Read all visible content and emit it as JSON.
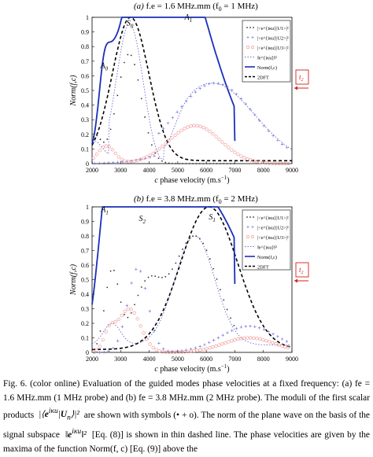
{
  "figure": {
    "colors": {
      "blue": "#1a2fb8",
      "black": "#000000",
      "red": "#d51f1f",
      "dotted": "#6b6bd6",
      "light_red": "#ef8f8f",
      "dark_dots": "#333333"
    },
    "panels": [
      {
        "label": "(a)",
        "title_rest": "f.e = 1.6 MHz.mm  (f",
        "title_sub": "0",
        "title_end": " = 1 MHz)",
        "xlabel": "c phase velocity (m.s",
        "xlabel_sup": "−1",
        "xlabel_end": ")",
        "ylabel": "Norm(f,c)",
        "xticks": [
          "2000",
          "3000",
          "4000",
          "5000",
          "6000",
          "7000",
          "8000",
          "9000"
        ],
        "yticks": [
          "0",
          "0.1",
          "0.2",
          "0.3",
          "0.4",
          "0.5",
          "0.6",
          "0.7",
          "0.8",
          "0.9",
          "1"
        ],
        "mode_labels": [
          "A0",
          "S0",
          "A1"
        ],
        "legend": [
          "|<e^{iκu}|U1>|²",
          "|<e^{iκu}|U2>|²",
          "|<e^{iκu}|U3>|²",
          "‖e^{iκu}‖²",
          "Norm(f,c)",
          "2DFT"
        ],
        "marker": "t2"
      },
      {
        "label": "(b)",
        "title_rest": "f.e = 3.8 MHz.mm  (f",
        "title_sub": "0",
        "title_end": " = 2 MHz)",
        "xlabel": "c phase velocity (m.s",
        "xlabel_sup": "−1",
        "xlabel_end": ")",
        "ylabel": "Norm(f,c)",
        "xticks": [
          "2000",
          "3000",
          "4000",
          "5000",
          "6000",
          "7000",
          "8000",
          "9000"
        ],
        "yticks": [
          "0",
          "0.1",
          "0.2",
          "0.3",
          "0.4",
          "0.5",
          "0.6",
          "0.7",
          "0.8",
          "0.9",
          "1"
        ],
        "mode_labels": [
          "A1",
          "S2",
          "S1"
        ],
        "legend": [
          "|<e^{iκu}|U1>|²",
          "|<e^{iκu}|U2>|²",
          "|<e^{iκu}|U3>|²",
          "‖e^{iκu}‖²",
          "Norm(f,c)",
          "2DFT"
        ],
        "marker": "t2"
      }
    ]
  },
  "caption": {
    "line1": "Fig. 6. (color online) Evaluation of the guided modes phase velocities at a fixed frequency: (a) fe = 1.6 MHz.mm (1 MHz probe) and (b) fe = 3.8 MHz.mm (2 MHz probe). The moduli of the first scalar products",
    "line1b": "are shown with symbols (• + o). The norm of the plane wave on the basis of the signal subspace",
    "line1c": "[Eq. (8)] is shown in thin dashed line. The phase velocities are given by the maxima of the function Norm(f, c) [Eq. (9)] above the"
  }
}
